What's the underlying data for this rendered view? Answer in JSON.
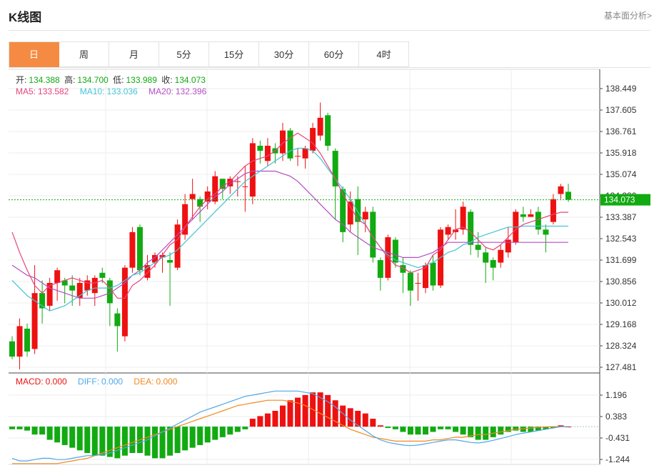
{
  "header": {
    "title": "K线图",
    "more_link": "基本面分析>"
  },
  "tabs": [
    {
      "label": "日",
      "active": true
    },
    {
      "label": "周",
      "active": false
    },
    {
      "label": "月",
      "active": false
    },
    {
      "label": "5分",
      "active": false
    },
    {
      "label": "15分",
      "active": false
    },
    {
      "label": "30分",
      "active": false
    },
    {
      "label": "60分",
      "active": false
    },
    {
      "label": "4时",
      "active": false
    }
  ],
  "ohlc_info": {
    "open_label": "开:",
    "open": "134.388",
    "high_label": "高:",
    "high": "134.700",
    "low_label": "低:",
    "low": "133.989",
    "close_label": "收:",
    "close": "134.073"
  },
  "ma_info": {
    "ma5_label": "MA5:",
    "ma5": "133.582",
    "ma10_label": "MA10:",
    "ma10": "133.036",
    "ma20_label": "MA20:",
    "ma20": "132.396"
  },
  "macd_info": {
    "macd_label": "MACD:",
    "macd": "0.000",
    "diff_label": "DIFF:",
    "diff": "0.000",
    "dea_label": "DEA:",
    "dea": "0.000"
  },
  "colors": {
    "up": "#ee1111",
    "down": "#11aa11",
    "ma5": "#e8437c",
    "ma10": "#45c3d6",
    "ma20": "#b44ec4",
    "diff": "#4fa8e8",
    "dea": "#f08a24",
    "last_price": "#11aa11",
    "tab_active": "#f58b42"
  },
  "chart_data": {
    "type": "candlestick",
    "last_price": 134.073,
    "last_price_label": "134.073",
    "price_axis_ticks": [
      "138.449",
      "137.605",
      "136.761",
      "135.918",
      "135.074",
      "134.230",
      "133.387",
      "132.543",
      "131.699",
      "130.856",
      "130.012",
      "129.168",
      "128.324",
      "127.481"
    ],
    "price_axis_values": [
      138.449,
      137.605,
      136.761,
      135.918,
      135.074,
      134.23,
      133.387,
      132.543,
      131.699,
      130.856,
      130.012,
      129.168,
      128.324,
      127.481
    ],
    "macd_axis_ticks": [
      "1.196",
      "0.383",
      "-0.431",
      "-1.244"
    ],
    "macd_axis_values": [
      1.196,
      0.383,
      -0.431,
      -1.244
    ],
    "candles": [
      [
        128.5,
        127.9,
        128.7,
        127.8
      ],
      [
        127.9,
        129.1,
        129.4,
        127.4
      ],
      [
        129.0,
        128.1,
        129.2,
        127.9
      ],
      [
        128.2,
        130.4,
        131.5,
        128.0
      ],
      [
        130.4,
        129.8,
        130.9,
        129.2
      ],
      [
        129.9,
        130.8,
        131.0,
        129.7
      ],
      [
        130.8,
        131.3,
        131.4,
        130.1
      ],
      [
        130.9,
        130.7,
        131.0,
        130.0
      ],
      [
        130.7,
        130.5,
        131.1,
        129.9
      ],
      [
        130.2,
        130.8,
        131.0,
        129.9
      ],
      [
        130.5,
        130.9,
        131.1,
        130.3
      ],
      [
        130.4,
        131.0,
        131.1,
        129.9
      ],
      [
        131.2,
        131.0,
        131.4,
        130.8
      ],
      [
        130.9,
        130.0,
        131.0,
        129.1
      ],
      [
        129.6,
        129.1,
        129.8,
        128.1
      ],
      [
        128.7,
        131.4,
        131.5,
        128.5
      ],
      [
        131.4,
        132.8,
        133.0,
        131.2
      ],
      [
        133.0,
        131.3,
        133.1,
        131.1
      ],
      [
        131.0,
        131.5,
        131.9,
        130.9
      ],
      [
        131.6,
        131.9,
        132.0,
        131.4
      ],
      [
        131.8,
        131.9,
        132.0,
        131.2
      ],
      [
        131.7,
        131.6,
        132.0,
        129.9
      ],
      [
        131.4,
        133.1,
        133.3,
        131.3
      ],
      [
        132.7,
        133.9,
        134.3,
        132.5
      ],
      [
        134.1,
        134.3,
        134.9,
        133.3
      ],
      [
        134.1,
        133.8,
        134.2,
        133.2
      ],
      [
        134.0,
        134.4,
        134.6,
        133.7
      ],
      [
        134.0,
        135.0,
        135.2,
        133.9
      ],
      [
        134.9,
        134.5,
        134.9,
        134.1
      ],
      [
        134.6,
        134.9,
        135.0,
        134.3
      ],
      [
        134.8,
        134.8,
        135.0,
        134.2
      ],
      [
        134.6,
        134.6,
        135.4,
        133.6
      ],
      [
        134.2,
        136.3,
        136.5,
        133.9
      ],
      [
        136.2,
        136.0,
        136.4,
        135.5
      ],
      [
        135.6,
        136.2,
        136.5,
        135.4
      ],
      [
        136.1,
        135.9,
        136.3,
        135.5
      ],
      [
        135.9,
        136.8,
        137.1,
        135.6
      ],
      [
        136.8,
        135.7,
        136.9,
        135.6
      ],
      [
        135.8,
        135.8,
        136.1,
        135.4
      ],
      [
        135.7,
        136.1,
        136.2,
        135.3
      ],
      [
        136.0,
        136.9,
        137.1,
        135.9
      ],
      [
        136.6,
        137.3,
        137.9,
        136.4
      ],
      [
        137.4,
        136.2,
        137.5,
        136.0
      ],
      [
        136.0,
        134.6,
        136.1,
        133.3
      ],
      [
        134.5,
        132.8,
        134.6,
        132.4
      ],
      [
        133.1,
        134.0,
        134.4,
        132.8
      ],
      [
        134.1,
        133.2,
        134.6,
        131.9
      ],
      [
        133.3,
        133.6,
        133.8,
        132.8
      ],
      [
        133.6,
        131.8,
        133.8,
        131.6
      ],
      [
        131.7,
        131.0,
        131.8,
        130.5
      ],
      [
        131.0,
        132.6,
        132.7,
        130.9
      ],
      [
        132.5,
        131.6,
        132.6,
        131.4
      ],
      [
        131.5,
        131.2,
        131.8,
        130.4
      ],
      [
        131.2,
        130.5,
        131.3,
        129.9
      ],
      [
        130.8,
        130.8,
        131.2,
        130.1
      ],
      [
        130.6,
        131.5,
        131.6,
        130.4
      ],
      [
        131.6,
        130.7,
        131.9,
        130.5
      ],
      [
        130.7,
        132.9,
        133.0,
        130.6
      ],
      [
        132.7,
        133.0,
        133.1,
        132.5
      ],
      [
        132.8,
        132.9,
        133.7,
        132.5
      ],
      [
        132.9,
        133.8,
        134.0,
        132.7
      ],
      [
        133.6,
        132.3,
        133.7,
        131.9
      ],
      [
        132.3,
        132.1,
        132.8,
        131.8
      ],
      [
        132.0,
        131.6,
        132.2,
        130.8
      ],
      [
        131.7,
        131.4,
        131.8,
        130.9
      ],
      [
        131.6,
        132.1,
        132.3,
        131.4
      ],
      [
        132.0,
        132.5,
        133.0,
        131.8
      ],
      [
        132.4,
        133.6,
        133.7,
        132.3
      ],
      [
        133.5,
        133.4,
        133.8,
        133.2
      ],
      [
        133.4,
        133.5,
        133.7,
        133.4
      ],
      [
        133.6,
        132.9,
        133.8,
        132.7
      ],
      [
        132.9,
        132.7,
        133.1,
        132.0
      ],
      [
        133.2,
        134.1,
        134.3,
        133.1
      ],
      [
        134.3,
        134.6,
        134.7,
        134.1
      ],
      [
        134.388,
        134.073,
        134.7,
        133.989
      ]
    ],
    "ma5": [
      132.8,
      132.0,
      131.3,
      130.7,
      130.4,
      130.7,
      130.8,
      130.9,
      131.0,
      130.9,
      130.8,
      130.8,
      130.9,
      130.6,
      130.2,
      130.2,
      130.7,
      130.9,
      131.2,
      131.5,
      131.9,
      132.3,
      132.5,
      133.0,
      133.4,
      133.8,
      134.1,
      134.3,
      134.6,
      134.8,
      135.1,
      135.4,
      135.6,
      135.7,
      135.8,
      136.0,
      136.3,
      136.5,
      136.7,
      136.5,
      136.3,
      135.9,
      135.4,
      134.9,
      134.3,
      133.8,
      133.3,
      133.1,
      132.6,
      132.2,
      131.8,
      131.5,
      131.4,
      131.2,
      131.3,
      131.4,
      131.9,
      132.1,
      132.5,
      132.9,
      133.0,
      132.8,
      132.5,
      132.2,
      132.1,
      132.3,
      132.6,
      132.9,
      133.1,
      133.2,
      133.3,
      133.4,
      133.5,
      133.582,
      133.582
    ],
    "ma10": [
      130.9,
      130.6,
      130.3,
      130.1,
      129.9,
      129.7,
      129.8,
      129.9,
      130.1,
      130.3,
      130.5,
      130.6,
      130.6,
      130.6,
      130.7,
      130.9,
      131.1,
      131.2,
      131.4,
      131.6,
      131.8,
      131.9,
      132.1,
      132.4,
      132.7,
      133.0,
      133.3,
      133.6,
      133.9,
      134.2,
      134.5,
      134.8,
      135.0,
      135.2,
      135.4,
      135.6,
      135.8,
      136.0,
      136.1,
      136.1,
      136.0,
      135.7,
      135.3,
      134.9,
      134.5,
      134.1,
      133.6,
      133.1,
      132.6,
      132.2,
      131.9,
      131.7,
      131.6,
      131.5,
      131.4,
      131.5,
      131.6,
      131.8,
      132.0,
      132.1,
      132.3,
      132.4,
      132.6,
      132.7,
      132.8,
      132.9,
      133.0,
      133.0,
      133.036,
      133.036,
      133.036,
      133.036,
      133.036,
      133.036,
      133.036
    ],
    "ma20": [
      131.5,
      131.3,
      131.1,
      131.0,
      130.8,
      130.6,
      130.5,
      130.4,
      130.3,
      130.2,
      130.2,
      130.2,
      130.3,
      130.4,
      130.6,
      130.8,
      131.1,
      131.3,
      131.6,
      131.8,
      132.1,
      132.4,
      132.7,
      133.0,
      133.3,
      133.6,
      133.9,
      134.2,
      134.4,
      134.7,
      134.9,
      135.1,
      135.2,
      135.2,
      135.2,
      135.2,
      135.1,
      135.0,
      134.8,
      134.5,
      134.2,
      133.9,
      133.6,
      133.3,
      133.1,
      132.8,
      132.6,
      132.4,
      132.2,
      132.1,
      132.0,
      131.9,
      131.8,
      131.8,
      131.8,
      131.9,
      132.0,
      132.2,
      132.396,
      132.396,
      132.396,
      132.396,
      132.396,
      132.396,
      132.396,
      132.396,
      132.396,
      132.396,
      132.396,
      132.396,
      132.396,
      132.396,
      132.396,
      132.396,
      132.396
    ],
    "macd_hist": [
      -0.1,
      -0.1,
      -0.15,
      -0.3,
      -0.3,
      -0.5,
      -0.6,
      -0.7,
      -0.8,
      -0.9,
      -1.0,
      -1.1,
      -1.1,
      -1.15,
      -1.2,
      -1.1,
      -1.0,
      -1.0,
      -1.1,
      -1.2,
      -1.2,
      -1.1,
      -1.0,
      -0.9,
      -0.8,
      -0.7,
      -0.6,
      -0.5,
      -0.4,
      -0.3,
      -0.2,
      -0.1,
      0.3,
      0.4,
      0.5,
      0.6,
      0.8,
      1.0,
      1.1,
      1.2,
      1.3,
      1.3,
      1.2,
      1.0,
      0.8,
      0.7,
      0.6,
      0.5,
      0.3,
      0.05,
      -0.05,
      -0.1,
      -0.2,
      -0.3,
      -0.3,
      -0.3,
      -0.2,
      -0.1,
      -0.1,
      -0.2,
      -0.3,
      -0.4,
      -0.5,
      -0.5,
      -0.4,
      -0.3,
      -0.2,
      -0.15,
      -0.2,
      -0.2,
      -0.15,
      -0.1,
      -0.05,
      0.05,
      0.0
    ],
    "macd_diff": [
      -1.2,
      -1.3,
      -1.3,
      -1.25,
      -1.2,
      -1.2,
      -1.25,
      -1.25,
      -1.2,
      -1.15,
      -1.1,
      -1.1,
      -1.05,
      -1.0,
      -0.9,
      -0.8,
      -0.7,
      -0.6,
      -0.5,
      -0.35,
      -0.2,
      -0.05,
      0.1,
      0.25,
      0.4,
      0.55,
      0.65,
      0.75,
      0.85,
      0.95,
      1.05,
      1.15,
      1.2,
      1.25,
      1.3,
      1.35,
      1.35,
      1.35,
      1.35,
      1.3,
      1.25,
      1.1,
      0.95,
      0.75,
      0.5,
      0.25,
      0.05,
      -0.15,
      -0.35,
      -0.5,
      -0.6,
      -0.65,
      -0.7,
      -0.72,
      -0.7,
      -0.65,
      -0.6,
      -0.55,
      -0.5,
      -0.5,
      -0.55,
      -0.6,
      -0.62,
      -0.58,
      -0.52,
      -0.45,
      -0.38,
      -0.3,
      -0.25,
      -0.2,
      -0.15,
      -0.1,
      -0.05,
      0.0,
      0.0
    ],
    "macd_dea": [
      -1.4,
      -1.4,
      -1.4,
      -1.4,
      -1.4,
      -1.4,
      -1.4,
      -1.35,
      -1.3,
      -1.25,
      -1.2,
      -1.1,
      -1.0,
      -0.9,
      -0.8,
      -0.7,
      -0.6,
      -0.5,
      -0.4,
      -0.3,
      -0.2,
      -0.1,
      0.0,
      0.1,
      0.2,
      0.3,
      0.4,
      0.5,
      0.6,
      0.7,
      0.8,
      0.85,
      0.9,
      0.95,
      1.0,
      1.0,
      1.0,
      0.95,
      0.9,
      0.8,
      0.65,
      0.5,
      0.35,
      0.2,
      0.05,
      -0.1,
      -0.2,
      -0.3,
      -0.4,
      -0.45,
      -0.5,
      -0.55,
      -0.55,
      -0.55,
      -0.55,
      -0.55,
      -0.5,
      -0.5,
      -0.45,
      -0.4,
      -0.4,
      -0.35,
      -0.3,
      -0.3,
      -0.25,
      -0.2,
      -0.15,
      -0.1,
      -0.08,
      -0.05,
      -0.03,
      -0.01,
      0.0,
      0.0,
      0.0
    ]
  }
}
